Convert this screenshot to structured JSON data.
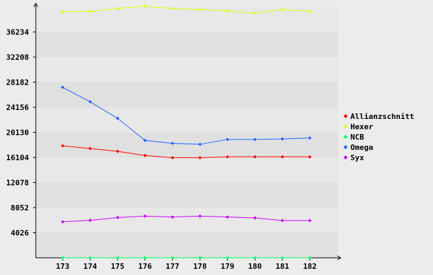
{
  "chart_data": {
    "type": "line",
    "title": "",
    "xlabel": "",
    "ylabel": "",
    "categories": [
      "173",
      "174",
      "175",
      "176",
      "177",
      "178",
      "179",
      "180",
      "181",
      "182"
    ],
    "y_ticks": [
      "4026",
      "8052",
      "12078",
      "16104",
      "20130",
      "24156",
      "28182",
      "32208",
      "36234"
    ],
    "ylim": [
      0,
      40260
    ],
    "grid": "horizontal bands",
    "legend_position": "right",
    "series": [
      {
        "name": "Allianzschnitt",
        "color": "#ff0000",
        "values": [
          17967,
          17535,
          17088,
          16413,
          16068,
          16068,
          16196,
          16196,
          16196,
          16196
        ]
      },
      {
        "name": "Hexer",
        "color": "#e6ff00",
        "values": [
          39510,
          39510,
          39990,
          40400,
          39990,
          39830,
          39620,
          39250,
          39830,
          39510
        ]
      },
      {
        "name": "NCB",
        "color": "#00ff66",
        "values": [
          0,
          0,
          0,
          0,
          0,
          0,
          0,
          0,
          0,
          0
        ]
      },
      {
        "name": "Omega",
        "color": "#1e64ff",
        "values": [
          27352,
          25037,
          22373,
          18832,
          18367,
          18207,
          18992,
          18992,
          19072,
          19232
        ]
      },
      {
        "name": "Syx",
        "color": "#cc00ff",
        "values": [
          5780,
          6017,
          6449,
          6689,
          6545,
          6689,
          6545,
          6401,
          5985,
          5985
        ]
      }
    ]
  }
}
